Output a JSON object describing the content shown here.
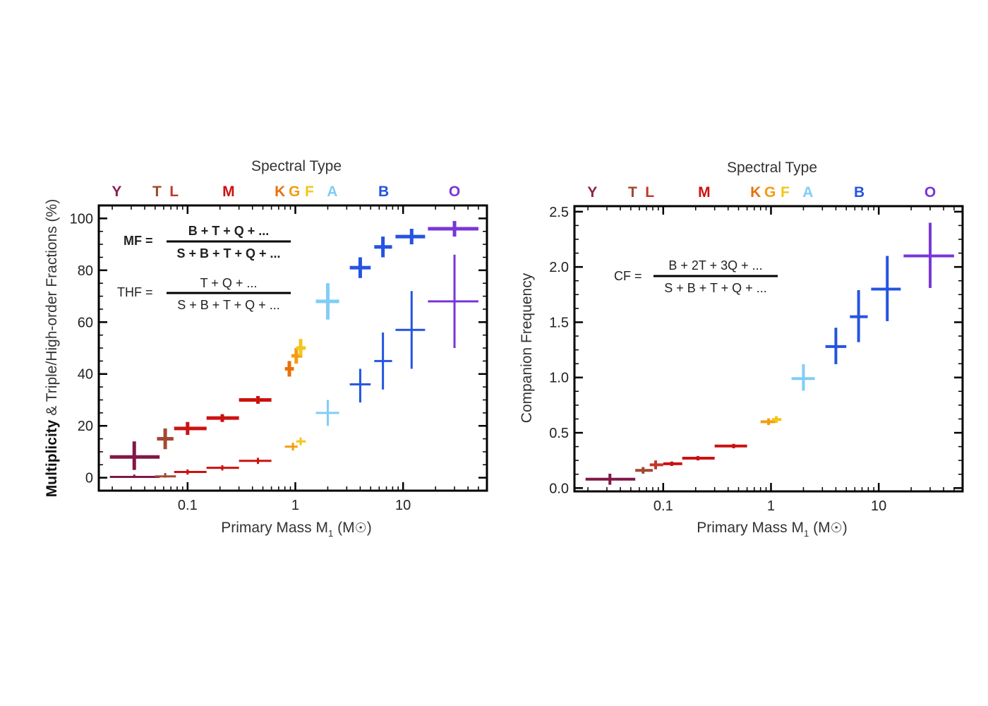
{
  "chart_data": [
    {
      "type": "scatter",
      "panel": "left",
      "title": "Spectral Type",
      "xlabel": "Primary Mass M",
      "xlabel_sub": "1",
      "xlabel_unit": "(M",
      "xlabel_unit_end": ")",
      "ylabel_bold": "Multiplicity",
      "ylabel_rest": " & Triple/High-order Fractions (%)",
      "xscale": "log",
      "xlim": [
        0.015,
        60
      ],
      "ylim": [
        -5,
        105
      ],
      "xticks": [
        {
          "value": 0.1,
          "label": "0.1"
        },
        {
          "value": 1,
          "label": "1"
        },
        {
          "value": 10,
          "label": "10"
        }
      ],
      "yticks": [
        {
          "value": 0,
          "label": "0"
        },
        {
          "value": 20,
          "label": "20"
        },
        {
          "value": 40,
          "label": "40"
        },
        {
          "value": 60,
          "label": "60"
        },
        {
          "value": 80,
          "label": "80"
        },
        {
          "value": 100,
          "label": "100"
        }
      ],
      "spectral_types": [
        {
          "label": "Y",
          "mass": 0.022,
          "color": "#8b2252"
        },
        {
          "label": "T",
          "mass": 0.052,
          "color": "#a0472d"
        },
        {
          "label": "L",
          "mass": 0.075,
          "color": "#c0392b"
        },
        {
          "label": "M",
          "mass": 0.24,
          "color": "#cc1111"
        },
        {
          "label": "K",
          "mass": 0.72,
          "color": "#e8700a"
        },
        {
          "label": "G",
          "mass": 0.98,
          "color": "#f39c12"
        },
        {
          "label": "F",
          "mass": 1.35,
          "color": "#f5c518"
        },
        {
          "label": "A",
          "mass": 2.2,
          "color": "#80cdf5"
        },
        {
          "label": "B",
          "mass": 6.6,
          "color": "#2454e0"
        },
        {
          "label": "O",
          "mass": 30,
          "color": "#7a35d8"
        }
      ],
      "series": [
        {
          "name": "Multiplicity Fraction (MF)",
          "weight": "thick",
          "points": [
            {
              "x": 0.032,
              "xlo": 0.019,
              "xhi": 0.055,
              "y": 8,
              "ylo": 3,
              "yhi": 14,
              "color": "#801848"
            },
            {
              "x": 0.062,
              "xlo": 0.052,
              "xhi": 0.074,
              "y": 15,
              "ylo": 11,
              "yhi": 19,
              "color": "#a04a32"
            },
            {
              "x": 0.1,
              "xlo": 0.075,
              "xhi": 0.15,
              "y": 19,
              "ylo": 16.5,
              "yhi": 21.5,
              "color": "#cc1111"
            },
            {
              "x": 0.21,
              "xlo": 0.15,
              "xhi": 0.3,
              "y": 23,
              "ylo": 21.5,
              "yhi": 24.5,
              "color": "#cc1111"
            },
            {
              "x": 0.45,
              "xlo": 0.3,
              "xhi": 0.6,
              "y": 30,
              "ylo": 28.5,
              "yhi": 31.5,
              "color": "#cc1111"
            },
            {
              "x": 0.88,
              "xlo": 0.8,
              "xhi": 0.97,
              "y": 42,
              "ylo": 39,
              "yhi": 45,
              "color": "#e8700a"
            },
            {
              "x": 1.02,
              "xlo": 0.92,
              "xhi": 1.16,
              "y": 47,
              "ylo": 44,
              "yhi": 50,
              "color": "#f39c12"
            },
            {
              "x": 1.12,
              "xlo": 1.02,
              "xhi": 1.25,
              "y": 50,
              "ylo": 47,
              "yhi": 53.5,
              "color": "#f5c518"
            },
            {
              "x": 2.0,
              "xlo": 1.55,
              "xhi": 2.55,
              "y": 68,
              "ylo": 61,
              "yhi": 75,
              "color": "#80cdf5"
            },
            {
              "x": 4.0,
              "xlo": 3.2,
              "xhi": 5.0,
              "y": 81,
              "ylo": 77,
              "yhi": 85,
              "color": "#2454e0"
            },
            {
              "x": 6.5,
              "xlo": 5.4,
              "xhi": 7.9,
              "y": 89,
              "ylo": 85,
              "yhi": 93,
              "color": "#2454e0"
            },
            {
              "x": 12,
              "xlo": 8.5,
              "xhi": 16,
              "y": 93,
              "ylo": 90,
              "yhi": 96,
              "color": "#2454e0"
            },
            {
              "x": 30,
              "xlo": 17,
              "xhi": 50,
              "y": 96,
              "ylo": 93,
              "yhi": 99,
              "color": "#7a35d8"
            }
          ]
        },
        {
          "name": "Triple/High-order Fraction (THF)",
          "weight": "thin",
          "points": [
            {
              "x": 0.032,
              "xlo": 0.019,
              "xhi": 0.055,
              "y": 0.3,
              "ylo": 0,
              "yhi": 1.2,
              "color": "#801848"
            },
            {
              "x": 0.062,
              "xlo": 0.05,
              "xhi": 0.078,
              "y": 0.5,
              "ylo": 0,
              "yhi": 1.8,
              "color": "#a04a32"
            },
            {
              "x": 0.1,
              "xlo": 0.075,
              "xhi": 0.15,
              "y": 2.2,
              "ylo": 1.2,
              "yhi": 3.2,
              "color": "#cc1111"
            },
            {
              "x": 0.21,
              "xlo": 0.15,
              "xhi": 0.3,
              "y": 3.8,
              "ylo": 2.8,
              "yhi": 4.8,
              "color": "#cc1111"
            },
            {
              "x": 0.45,
              "xlo": 0.3,
              "xhi": 0.6,
              "y": 6.5,
              "ylo": 5.3,
              "yhi": 7.7,
              "color": "#cc1111"
            },
            {
              "x": 0.95,
              "xlo": 0.8,
              "xhi": 1.05,
              "y": 12,
              "ylo": 10.5,
              "yhi": 13.5,
              "color": "#f39c12"
            },
            {
              "x": 1.12,
              "xlo": 1.02,
              "xhi": 1.25,
              "y": 14,
              "ylo": 12.5,
              "yhi": 15.5,
              "color": "#f5c518"
            },
            {
              "x": 2.0,
              "xlo": 1.55,
              "xhi": 2.55,
              "y": 25,
              "ylo": 20,
              "yhi": 30,
              "color": "#80cdf5"
            },
            {
              "x": 4.0,
              "xlo": 3.2,
              "xhi": 5.0,
              "y": 36,
              "ylo": 29,
              "yhi": 42,
              "color": "#2454e0"
            },
            {
              "x": 6.5,
              "xlo": 5.4,
              "xhi": 7.9,
              "y": 45,
              "ylo": 34,
              "yhi": 56,
              "color": "#2454e0"
            },
            {
              "x": 12,
              "xlo": 8.5,
              "xhi": 16,
              "y": 57,
              "ylo": 42,
              "yhi": 72,
              "color": "#2454e0"
            },
            {
              "x": 30,
              "xlo": 17,
              "xhi": 50,
              "y": 68,
              "ylo": 50,
              "yhi": 86,
              "color": "#7a35d8"
            }
          ]
        }
      ],
      "equations": [
        {
          "lhs": "MF =",
          "numerator": "B + T + Q + ...",
          "denominator": "S + B + T + Q + ...",
          "bold": true
        },
        {
          "lhs": "THF =",
          "numerator": "T + Q + ...",
          "denominator": "S + B + T + Q + ...",
          "bold": false
        }
      ]
    },
    {
      "type": "scatter",
      "panel": "right",
      "title": "Spectral Type",
      "xlabel": "Primary Mass M",
      "xlabel_sub": "1",
      "xlabel_unit": "(M",
      "xlabel_unit_end": ")",
      "ylabel": "Companion Frequency",
      "xscale": "log",
      "xlim": [
        0.015,
        60
      ],
      "ylim": [
        -0.03,
        2.55
      ],
      "xticks": [
        {
          "value": 0.1,
          "label": "0.1"
        },
        {
          "value": 1,
          "label": "1"
        },
        {
          "value": 10,
          "label": "10"
        }
      ],
      "yticks": [
        {
          "value": 0,
          "label": "0.0"
        },
        {
          "value": 0.5,
          "label": "0.5"
        },
        {
          "value": 1.0,
          "label": "1.0"
        },
        {
          "value": 1.5,
          "label": "1.5"
        },
        {
          "value": 2.0,
          "label": "2.0"
        },
        {
          "value": 2.5,
          "label": "2.5"
        }
      ],
      "spectral_types": [
        {
          "label": "Y",
          "mass": 0.022,
          "color": "#8b2252"
        },
        {
          "label": "T",
          "mass": 0.052,
          "color": "#a0472d"
        },
        {
          "label": "L",
          "mass": 0.075,
          "color": "#c0392b"
        },
        {
          "label": "M",
          "mass": 0.24,
          "color": "#cc1111"
        },
        {
          "label": "K",
          "mass": 0.72,
          "color": "#e8700a"
        },
        {
          "label": "G",
          "mass": 0.98,
          "color": "#f39c12"
        },
        {
          "label": "F",
          "mass": 1.35,
          "color": "#f5c518"
        },
        {
          "label": "A",
          "mass": 2.2,
          "color": "#80cdf5"
        },
        {
          "label": "B",
          "mass": 6.6,
          "color": "#2454e0"
        },
        {
          "label": "O",
          "mass": 30,
          "color": "#7a35d8"
        }
      ],
      "series": [
        {
          "name": "Companion Frequency (CF)",
          "weight": "medium",
          "points": [
            {
              "x": 0.032,
              "xlo": 0.019,
              "xhi": 0.055,
              "y": 0.08,
              "ylo": 0.03,
              "yhi": 0.13,
              "color": "#801848"
            },
            {
              "x": 0.065,
              "xlo": 0.055,
              "xhi": 0.08,
              "y": 0.16,
              "ylo": 0.13,
              "yhi": 0.19,
              "color": "#a04a32"
            },
            {
              "x": 0.085,
              "xlo": 0.075,
              "xhi": 0.1,
              "y": 0.21,
              "ylo": 0.17,
              "yhi": 0.25,
              "color": "#c0392b"
            },
            {
              "x": 0.12,
              "xlo": 0.1,
              "xhi": 0.15,
              "y": 0.22,
              "ylo": 0.2,
              "yhi": 0.24,
              "color": "#cc1111"
            },
            {
              "x": 0.21,
              "xlo": 0.15,
              "xhi": 0.3,
              "y": 0.27,
              "ylo": 0.25,
              "yhi": 0.29,
              "color": "#cc1111"
            },
            {
              "x": 0.45,
              "xlo": 0.3,
              "xhi": 0.6,
              "y": 0.38,
              "ylo": 0.36,
              "yhi": 0.4,
              "color": "#cc1111"
            },
            {
              "x": 0.95,
              "xlo": 0.8,
              "xhi": 1.1,
              "y": 0.6,
              "ylo": 0.57,
              "yhi": 0.63,
              "color": "#f39c12"
            },
            {
              "x": 1.12,
              "xlo": 1.02,
              "xhi": 1.25,
              "y": 0.62,
              "ylo": 0.59,
              "yhi": 0.65,
              "color": "#f5c518"
            },
            {
              "x": 2.0,
              "xlo": 1.55,
              "xhi": 2.55,
              "y": 0.99,
              "ylo": 0.88,
              "yhi": 1.12,
              "color": "#80cdf5"
            },
            {
              "x": 4.0,
              "xlo": 3.2,
              "xhi": 5.0,
              "y": 1.28,
              "ylo": 1.12,
              "yhi": 1.45,
              "color": "#2454e0"
            },
            {
              "x": 6.5,
              "xlo": 5.4,
              "xhi": 7.9,
              "y": 1.55,
              "ylo": 1.32,
              "yhi": 1.79,
              "color": "#2454e0"
            },
            {
              "x": 12,
              "xlo": 8.5,
              "xhi": 16,
              "y": 1.8,
              "ylo": 1.51,
              "yhi": 2.1,
              "color": "#2454e0"
            },
            {
              "x": 30,
              "xlo": 17,
              "xhi": 50,
              "y": 2.1,
              "ylo": 1.81,
              "yhi": 2.4,
              "color": "#7a35d8"
            }
          ]
        }
      ],
      "equations": [
        {
          "lhs": "CF =",
          "numerator": "B + 2T + 3Q + ...",
          "denominator": "S + B + T + Q + ...",
          "bold": false
        }
      ]
    }
  ]
}
